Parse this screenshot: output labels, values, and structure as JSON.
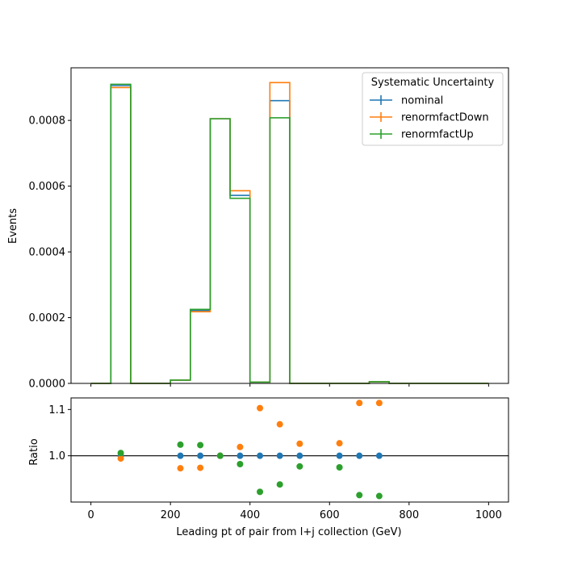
{
  "chart_data": [
    {
      "type": "step",
      "ylabel": "Events",
      "xlim": [
        -50,
        1050
      ],
      "ylim": [
        0,
        0.00096
      ],
      "yticks": [
        0.0,
        0.0002,
        0.0004,
        0.0006,
        0.0008
      ],
      "ytick_labels": [
        "0.0000",
        "0.0002",
        "0.0004",
        "0.0006",
        "0.0008"
      ],
      "xticks": [
        0,
        200,
        400,
        600,
        800,
        1000
      ],
      "bin_edges": [
        0,
        50,
        100,
        150,
        200,
        250,
        300,
        350,
        400,
        450,
        500,
        550,
        600,
        650,
        700,
        750,
        800,
        850,
        900,
        950,
        1000
      ],
      "legend": {
        "title": "Systematic Uncertainty",
        "placement": "upper right"
      },
      "series": [
        {
          "name": "nominal",
          "color": "#1f77b4",
          "values": [
            0,
            0.000906,
            0,
            0,
            1e-05,
            0.000222,
            0.000805,
            0.000572,
            4e-06,
            0.00086,
            0,
            0,
            0,
            0,
            5e-06,
            0,
            0,
            0,
            0,
            0
          ]
        },
        {
          "name": "renormfactDown",
          "color": "#ff7f0e",
          "values": [
            0,
            0.0009,
            0,
            0,
            1e-05,
            0.000218,
            0.000805,
            0.000586,
            4e-06,
            0.000915,
            0,
            0,
            0,
            0,
            5e-06,
            0,
            0,
            0,
            0,
            0
          ]
        },
        {
          "name": "renormfactUp",
          "color": "#2ca02c",
          "values": [
            0,
            0.00091,
            0,
            0,
            1e-05,
            0.000225,
            0.000805,
            0.000563,
            4e-06,
            0.000808,
            0,
            0,
            0,
            0,
            5e-06,
            0,
            0,
            0,
            0,
            0
          ]
        }
      ]
    },
    {
      "type": "scatter",
      "xlabel": "Leading pt of pair from l+j collection (GeV)",
      "ylabel": "Ratio",
      "xlim": [
        -50,
        1050
      ],
      "ylim": [
        0.9,
        1.125
      ],
      "yticks": [
        1.0,
        1.1
      ],
      "ytick_labels": [
        "1.0",
        "1.1"
      ],
      "xticks": [
        0,
        200,
        400,
        600,
        800,
        1000
      ],
      "xtick_labels": [
        "0",
        "200",
        "400",
        "600",
        "800",
        "1000"
      ],
      "reference_line": 1.0,
      "series": [
        {
          "name": "nominal",
          "color": "#1f77b4",
          "x": [
            75,
            225,
            275,
            325,
            375,
            425,
            475,
            525,
            625,
            675,
            725
          ],
          "y": [
            1.0,
            1.0,
            1.0,
            1.0,
            1.0,
            1.0,
            1.0,
            1.0,
            1.0,
            1.0,
            1.0
          ]
        },
        {
          "name": "renormfactDown",
          "color": "#ff7f0e",
          "x": [
            75,
            225,
            275,
            325,
            375,
            425,
            475,
            525,
            625,
            675,
            725
          ],
          "y": [
            0.994,
            0.973,
            0.974,
            1.0,
            1.019,
            1.103,
            1.068,
            1.026,
            1.027,
            1.114,
            1.114
          ]
        },
        {
          "name": "renormfactUp",
          "color": "#2ca02c",
          "x": [
            75,
            225,
            275,
            325,
            375,
            425,
            475,
            525,
            625,
            675,
            725
          ],
          "y": [
            1.006,
            1.024,
            1.023,
            1.0,
            0.982,
            0.922,
            0.938,
            0.977,
            0.975,
            0.915,
            0.913
          ]
        }
      ]
    }
  ]
}
